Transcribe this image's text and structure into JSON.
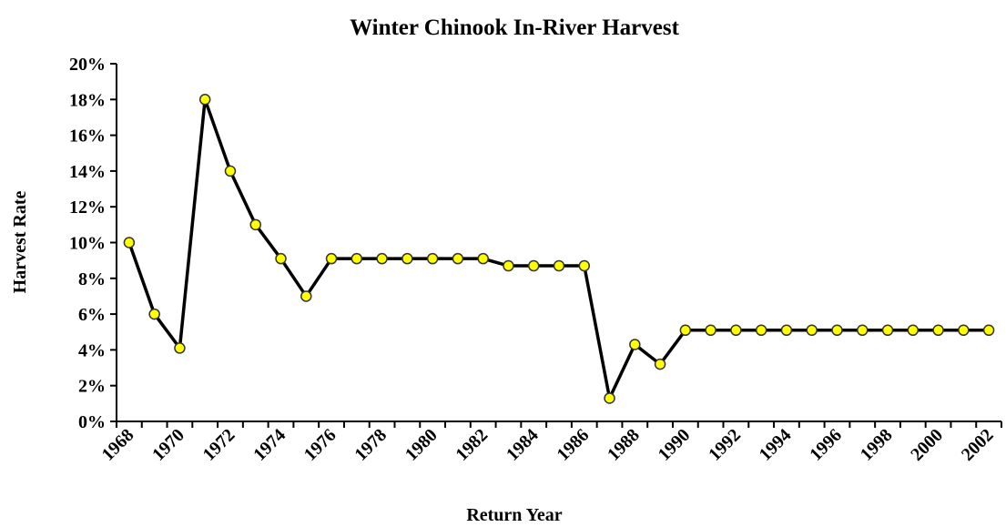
{
  "chart_data": {
    "type": "line",
    "title": "Winter Chinook In-River Harvest",
    "x_label": "Return Year",
    "y_label": "Harvest Rate",
    "categories": [
      "1968",
      null,
      "1970",
      null,
      "1972",
      null,
      "1974",
      null,
      "1976",
      null,
      "1978",
      null,
      "1980",
      null,
      "1982",
      null,
      "1984",
      null,
      "1986",
      null,
      "1988",
      null,
      "1990",
      null,
      "1992",
      null,
      "1994",
      null,
      "1996",
      null,
      "1998",
      null,
      "2000",
      null,
      "2002"
    ],
    "values": [
      10,
      6,
      4.1,
      18,
      14,
      11,
      9.1,
      7,
      9.1,
      9.1,
      9.1,
      9.1,
      9.1,
      9.1,
      9.1,
      8.7,
      8.7,
      8.7,
      8.7,
      1.3,
      4.3,
      3.2,
      5.1,
      5.1,
      5.1,
      5.1,
      5.1,
      5.1,
      5.1,
      5.1,
      5.1,
      5.1,
      5.1,
      5.1,
      5.1
    ],
    "color": "#000000",
    "marker_color": "#ffff00",
    "ylim": [
      0,
      20
    ],
    "yticks": [
      {
        "value": 0,
        "label": "0%"
      },
      {
        "value": 2,
        "label": "2%"
      },
      {
        "value": 4,
        "label": "4%"
      },
      {
        "value": 6,
        "label": "6%"
      },
      {
        "value": 8,
        "label": "8%"
      },
      {
        "value": 10,
        "label": "10%"
      },
      {
        "value": 12,
        "label": "12%"
      },
      {
        "value": 14,
        "label": "14%"
      },
      {
        "value": 16,
        "label": "16%"
      },
      {
        "value": 18,
        "label": "18%"
      },
      {
        "value": 20,
        "label": "20%"
      }
    ],
    "grid": false
  }
}
